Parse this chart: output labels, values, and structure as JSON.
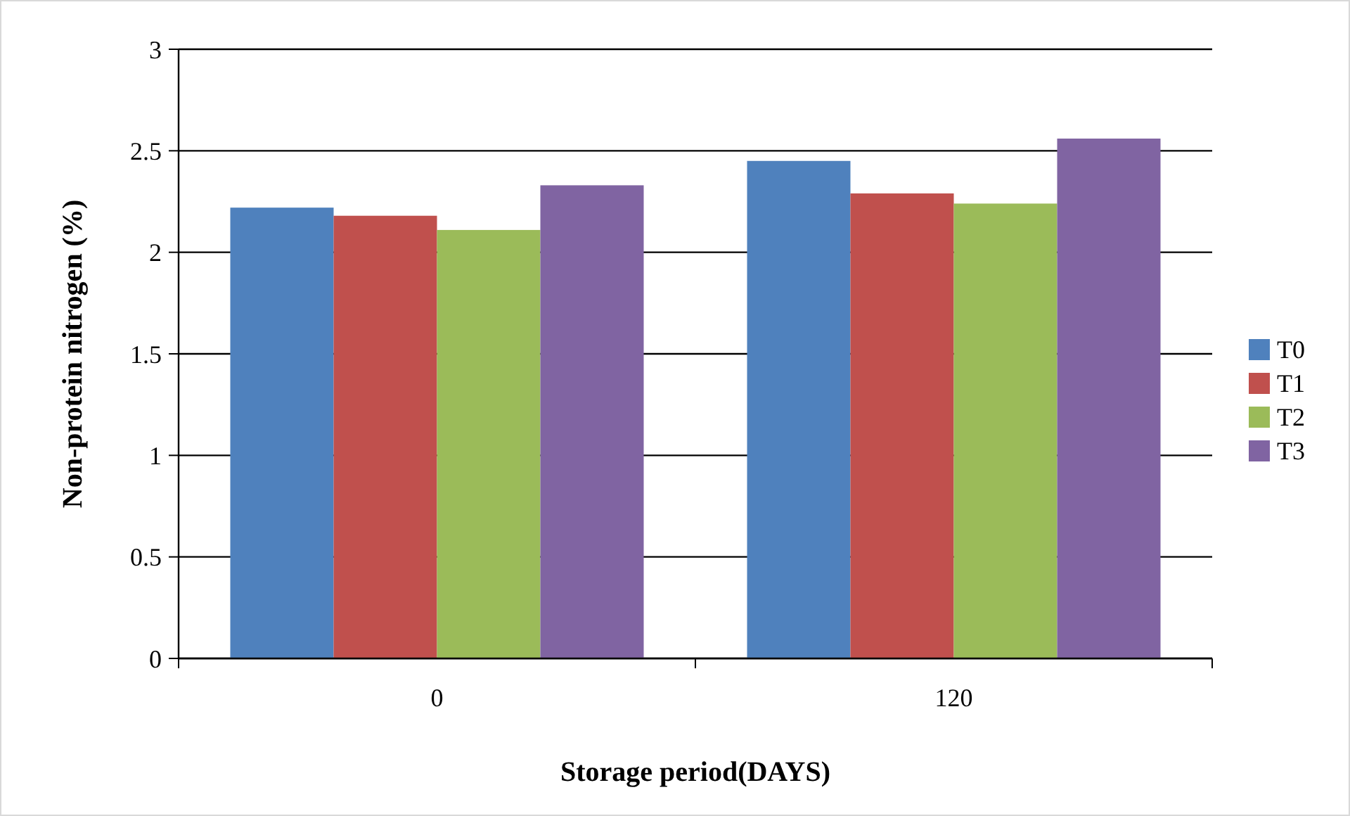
{
  "chart_data": {
    "type": "bar",
    "xlabel": "Storage period(DAYS)",
    "ylabel": "Non-protein nitrogen (%)",
    "categories": [
      "0",
      "120"
    ],
    "series": [
      {
        "name": "T0",
        "color": "#4f81bd",
        "values": [
          2.22,
          2.45
        ]
      },
      {
        "name": "T1",
        "color": "#c0504d",
        "values": [
          2.18,
          2.29
        ]
      },
      {
        "name": "T2",
        "color": "#9bbb59",
        "values": [
          2.11,
          2.24
        ]
      },
      {
        "name": "T3",
        "color": "#8064a2",
        "values": [
          2.33,
          2.56
        ]
      }
    ],
    "ylim": [
      0,
      3
    ],
    "yticks": [
      0,
      0.5,
      1,
      1.5,
      2,
      2.5,
      3
    ],
    "grid": "y",
    "legend": "right"
  }
}
